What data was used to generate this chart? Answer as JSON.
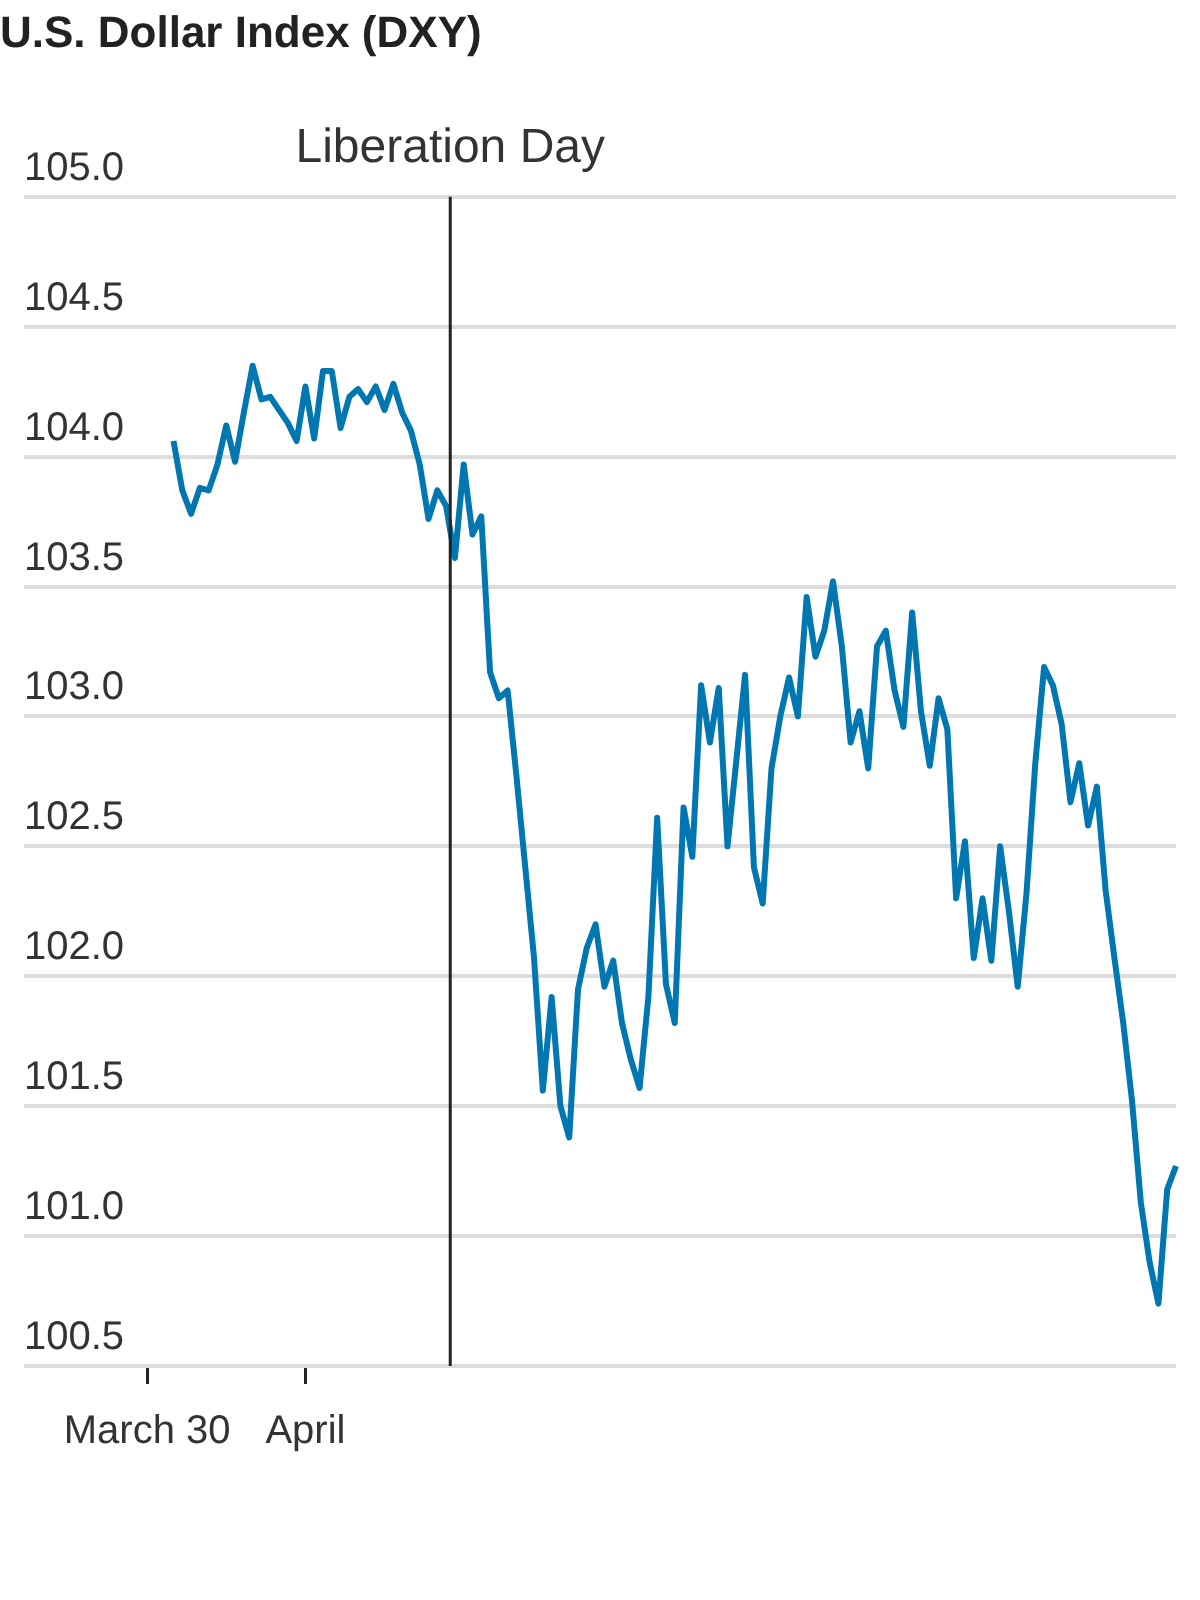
{
  "chart_data": {
    "type": "line",
    "title": "U.S. Dollar Index (DXY)",
    "categories": [
      null,
      null,
      null,
      null,
      null,
      null,
      null,
      null,
      null,
      null,
      null,
      null,
      null,
      null,
      "March 30",
      null,
      null,
      null,
      null,
      null,
      null,
      null,
      null,
      null,
      null,
      null,
      null,
      null,
      null,
      null,
      null,
      null,
      "April",
      null,
      null,
      null,
      null,
      null,
      null,
      null,
      null,
      null,
      null,
      null,
      null,
      null,
      null,
      null,
      null,
      null,
      null,
      null,
      null,
      null,
      null,
      null,
      null,
      null,
      null,
      null,
      null,
      null,
      null,
      null,
      null,
      null,
      null,
      null,
      null,
      null,
      null,
      null,
      null,
      null,
      null,
      null,
      null,
      null,
      null,
      null,
      null,
      null,
      null,
      null,
      null,
      null,
      null,
      null,
      null,
      null,
      null,
      null,
      null,
      null,
      null,
      null,
      null,
      null,
      null,
      null,
      null,
      null,
      null,
      null,
      null,
      null,
      null,
      null,
      null,
      null,
      null,
      null,
      null,
      null,
      null,
      null,
      null,
      null,
      null,
      null,
      null,
      null,
      null,
      null,
      null,
      null,
      null,
      null,
      null,
      null,
      null,
      null
    ],
    "series": [
      {
        "color": "#0077b0",
        "values": [
          null,
          null,
          null,
          null,
          null,
          null,
          null,
          null,
          null,
          null,
          null,
          null,
          null,
          null,
          null,
          null,
          null,
          104.06,
          103.87,
          103.78,
          103.88,
          103.87,
          103.97,
          104.12,
          103.98,
          104.17,
          104.35,
          104.22,
          104.23,
          104.18,
          104.13,
          104.06,
          104.27,
          104.07,
          104.33,
          104.33,
          104.11,
          104.23,
          104.26,
          104.21,
          104.27,
          104.18,
          104.28,
          104.17,
          104.1,
          103.97,
          103.76,
          103.87,
          103.81,
          103.61,
          103.97,
          103.7,
          103.77,
          103.17,
          103.07,
          103.1,
          102.77,
          102.42,
          102.07,
          101.56,
          101.92,
          101.5,
          101.38,
          101.95,
          102.11,
          102.2,
          101.96,
          102.06,
          101.82,
          101.68,
          101.57,
          101.92,
          102.61,
          101.97,
          101.82,
          102.65,
          102.46,
          103.12,
          102.9,
          103.11,
          102.5,
          102.83,
          103.16,
          102.42,
          102.28,
          102.8,
          103.0,
          103.15,
          103.0,
          103.46,
          103.23,
          103.33,
          103.52,
          103.27,
          102.9,
          103.02,
          102.8,
          103.27,
          103.33,
          103.1,
          102.96,
          103.4,
          103.02,
          102.81,
          103.07,
          102.95,
          102.3,
          102.52,
          102.07,
          102.3,
          102.06,
          102.5,
          102.25,
          101.96,
          102.32,
          102.82,
          103.19,
          103.12,
          102.97,
          102.67,
          102.82,
          102.58,
          102.73,
          102.33,
          102.07,
          101.82,
          101.52,
          101.13,
          100.9,
          100.74,
          101.18,
          101.27
        ]
      }
    ],
    "ylim": [
      100.5,
      105.0
    ],
    "yticks": [
      {
        "value": 100.5,
        "label": "100.5"
      },
      {
        "value": 101,
        "label": "101.0"
      },
      {
        "value": 101.5,
        "label": "101.5"
      },
      {
        "value": 102,
        "label": "102.0"
      },
      {
        "value": 102.5,
        "label": "102.5"
      },
      {
        "value": 103,
        "label": "103.0"
      },
      {
        "value": 103.5,
        "label": "103.5"
      },
      {
        "value": 104,
        "label": "104.0"
      },
      {
        "value": 104.5,
        "label": "104.5"
      },
      {
        "value": 105,
        "label": "105.0"
      }
    ],
    "annotations": [
      "Liberation Day"
    ],
    "grid": "y",
    "legend": false,
    "marker": "none"
  }
}
